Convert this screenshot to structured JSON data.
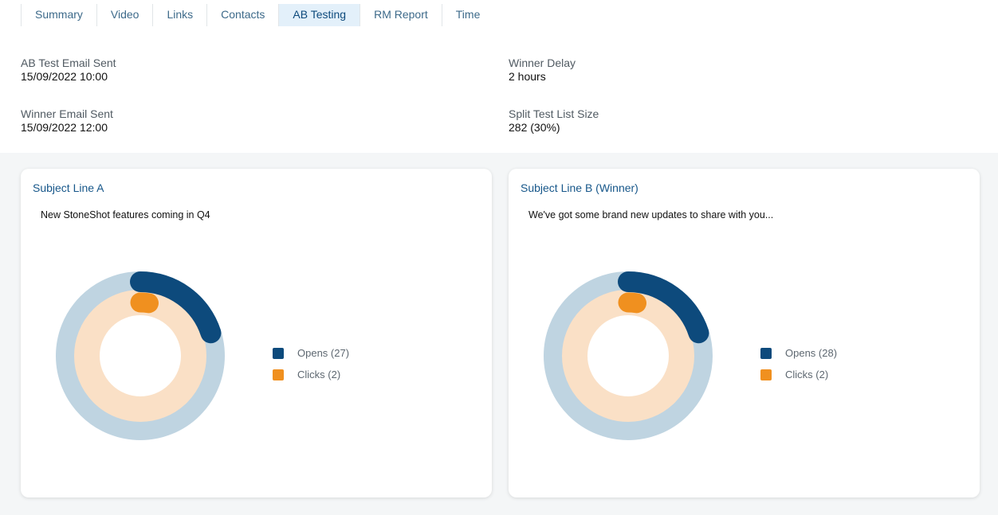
{
  "tabs": [
    {
      "label": "Summary",
      "active": false
    },
    {
      "label": "Video",
      "active": false
    },
    {
      "label": "Links",
      "active": false
    },
    {
      "label": "Contacts",
      "active": false
    },
    {
      "label": "AB Testing",
      "active": true
    },
    {
      "label": "RM Report",
      "active": false
    },
    {
      "label": "Time",
      "active": false
    }
  ],
  "details": {
    "ab_sent": {
      "label": "AB Test Email Sent",
      "value": "15/09/2022 10:00"
    },
    "winner_sent": {
      "label": "Winner Email Sent",
      "value": "15/09/2022 12:00"
    },
    "winner_delay": {
      "label": "Winner Delay",
      "value": "2 hours"
    },
    "split_size": {
      "label": "Split Test List Size",
      "value": "282 (30%)"
    }
  },
  "colors": {
    "opens": "#0d4a7c",
    "opens_track": "#bfd4e1",
    "clicks": "#f0901f",
    "clicks_track": "#fae0c6"
  },
  "cards": [
    {
      "title": "Subject Line A",
      "subject": "New StoneShot features coming in Q4",
      "opens_label": "Opens (27)",
      "clicks_label": "Clicks (2)",
      "opens_fraction": 0.2,
      "clicks_fraction": 0.025
    },
    {
      "title": "Subject Line B (Winner)",
      "subject": "We've got some brand new updates to share with you...",
      "opens_label": "Opens (28)",
      "clicks_label": "Clicks (2)",
      "opens_fraction": 0.2,
      "clicks_fraction": 0.025
    }
  ]
}
